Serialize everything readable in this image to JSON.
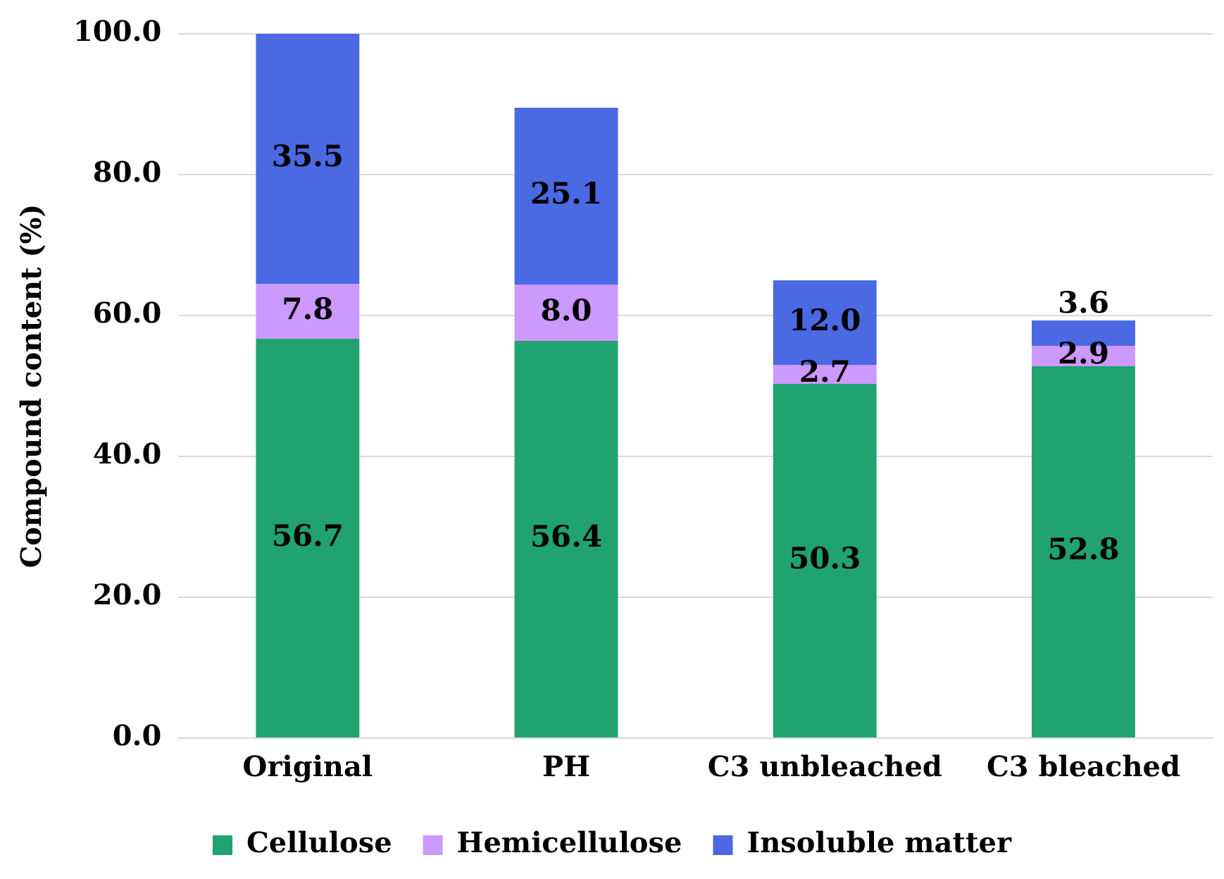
{
  "chart_data": {
    "type": "bar",
    "stacked": true,
    "ylabel": "Compound content (%)",
    "categories": [
      "Original",
      "PH",
      "C3 unbleached",
      "C3 bleached"
    ],
    "series": [
      {
        "name": "Cellulose",
        "color": "#21a271",
        "values": [
          56.7,
          56.4,
          50.3,
          52.8
        ],
        "value_labels": [
          "56.7",
          "56.4",
          "50.3",
          "52.8"
        ]
      },
      {
        "name": "Hemicellulose",
        "color": "#cc99ff",
        "values": [
          7.8,
          8.0,
          2.7,
          2.9
        ],
        "value_labels": [
          "7.8",
          "8.0",
          "2.7",
          "2.9"
        ]
      },
      {
        "name": "Insoluble matter",
        "color": "#4a69e2",
        "values": [
          35.5,
          25.1,
          12.0,
          3.6
        ],
        "value_labels": [
          "35.5",
          "25.1",
          "12.0",
          "3.6"
        ]
      }
    ],
    "ylim": [
      0,
      100
    ],
    "yticks": [
      {
        "value": 0,
        "label": "0.0"
      },
      {
        "value": 20,
        "label": "20.0"
      },
      {
        "value": 40,
        "label": "40.0"
      },
      {
        "value": 60,
        "label": "60.0"
      },
      {
        "value": 80,
        "label": "80.0"
      },
      {
        "value": 100,
        "label": "100.0"
      }
    ],
    "grid": "y",
    "legend": "bottom"
  }
}
